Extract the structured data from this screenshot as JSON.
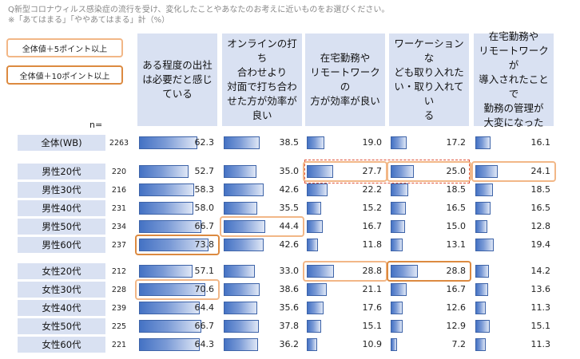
{
  "question": {
    "line1": "Q新型コロナウィルス感染症の流行を受け、変化したことやあなたのお考えに近いものをお選びください。",
    "line2": "※「あてはまる」「ややあてはまる」計（%）"
  },
  "legend": {
    "plus5": "全体値＋5ポイント以上",
    "plus10": "全体値＋10ポイント以上"
  },
  "colors": {
    "plus5": "#f2b787",
    "plus10": "#dc8a40",
    "bar": "#4472c4",
    "header_bg": "#d9e1f2"
  },
  "n_header": "n=",
  "chart_data": {
    "type": "bar",
    "orientation": "horizontal",
    "unit": "%",
    "columns": [
      {
        "label_lines": [
          "ある程度の出社",
          "は必要だと感じ",
          "ている"
        ]
      },
      {
        "label_lines": [
          "オンラインの打ち",
          "合わせより",
          "対面で打ち合わ",
          "せた方が効率が",
          "良い"
        ]
      },
      {
        "label_lines": [
          "在宅勤務や",
          "リモートワークの",
          "方が効率が良い"
        ]
      },
      {
        "label_lines": [
          "ワーケーションな",
          "ども取り入れた",
          "い・取り入れてい",
          "る"
        ]
      },
      {
        "label_lines": [
          "在宅勤務や",
          "リモートワークが",
          "導入されたことで",
          "勤務の管理が",
          "大変になった"
        ]
      }
    ],
    "rows": [
      {
        "label": "全体(WB)",
        "n": "2263",
        "values": [
          62.3,
          38.5,
          19.0,
          17.2,
          16.1
        ]
      },
      {
        "label": "男性20代",
        "n": "220",
        "values": [
          52.7,
          35.0,
          27.7,
          25.0,
          24.1
        ]
      },
      {
        "label": "男性30代",
        "n": "216",
        "values": [
          58.3,
          42.6,
          22.2,
          18.5,
          18.5
        ]
      },
      {
        "label": "男性40代",
        "n": "231",
        "values": [
          58.0,
          35.5,
          15.2,
          16.5,
          16.5
        ]
      },
      {
        "label": "男性50代",
        "n": "234",
        "values": [
          66.7,
          44.4,
          16.7,
          15.0,
          12.8
        ]
      },
      {
        "label": "男性60代",
        "n": "237",
        "values": [
          73.8,
          42.6,
          11.8,
          13.1,
          19.4
        ]
      },
      {
        "label": "女性20代",
        "n": "212",
        "values": [
          57.1,
          33.0,
          28.8,
          28.8,
          14.2
        ]
      },
      {
        "label": "女性30代",
        "n": "228",
        "values": [
          70.6,
          38.6,
          21.1,
          16.7,
          13.6
        ]
      },
      {
        "label": "女性40代",
        "n": "239",
        "values": [
          64.4,
          35.6,
          17.6,
          12.6,
          11.3
        ]
      },
      {
        "label": "女性50代",
        "n": "225",
        "values": [
          66.7,
          37.8,
          15.1,
          12.9,
          15.1
        ]
      },
      {
        "label": "女性60代",
        "n": "221",
        "values": [
          64.3,
          36.2,
          10.9,
          7.2,
          11.3
        ]
      }
    ],
    "highlights": [
      {
        "row": 1,
        "col": 2,
        "level": "plus5"
      },
      {
        "row": 1,
        "col": 3,
        "level": "plus5"
      },
      {
        "row": 1,
        "col": 4,
        "level": "plus5"
      },
      {
        "row": 4,
        "col": 1,
        "level": "plus5"
      },
      {
        "row": 5,
        "col": 0,
        "level": "plus10"
      },
      {
        "row": 6,
        "col": 2,
        "level": "plus5"
      },
      {
        "row": 6,
        "col": 3,
        "level": "plus10"
      },
      {
        "row": 7,
        "col": 0,
        "level": "plus5"
      }
    ],
    "dashed_group": {
      "row": 1,
      "cols": [
        2,
        3
      ]
    }
  }
}
